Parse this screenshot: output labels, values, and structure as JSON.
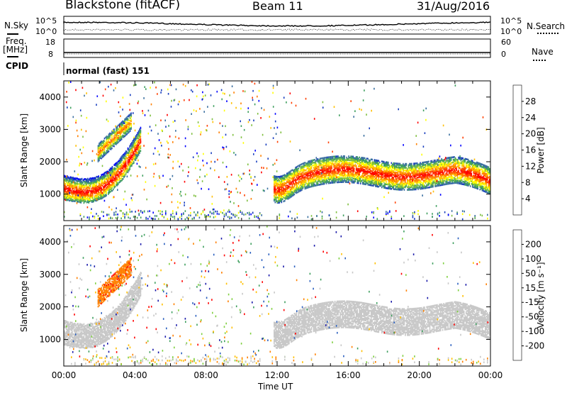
{
  "header": {
    "station": "Blackstone (fitACF)",
    "beam": "Beam 11",
    "date": "31/Aug/2016"
  },
  "top_panels": {
    "nsky_label": "N.Sky",
    "nsearch_label": "N.Search",
    "noise_ticks": [
      "10^5",
      "10^0"
    ],
    "freq_label": "Freq.",
    "freq_unit": "[MHz]",
    "freq_ticks": [
      "18",
      "8"
    ],
    "nave_label": "Nave",
    "nave_ticks": [
      "60",
      "0"
    ],
    "cpid_label": "CPID",
    "cpid_value": "normal (fast) 151"
  },
  "colors": {
    "power_scale": [
      "#0000ff",
      "#1a3fbf",
      "#3a6fa0",
      "#3f9f5f",
      "#7fbf3f",
      "#ffff00",
      "#ffbf00",
      "#ff8000",
      "#ff4000",
      "#ff0000"
    ],
    "velocity_scale": [
      "#ff0000",
      "#ff8000",
      "#ffbf00",
      "#c8c8c8",
      "#c8c8c8",
      "#7fd040",
      "#3f9f5f",
      "#2a5fbf",
      "#1a1aaa"
    ]
  },
  "chart_data": [
    {
      "type": "heatmap",
      "title": "",
      "xlabel": "Time UT",
      "ylabel": "Slant Range [km]",
      "x_ticks": [
        "00:00",
        "04:00",
        "08:00",
        "12:00",
        "16:00",
        "20:00",
        "00:00"
      ],
      "xlim": [
        0,
        24
      ],
      "ylim": [
        180,
        4500
      ],
      "y_ticks": [
        "1000",
        "2000",
        "3000",
        "4000"
      ],
      "colorbar": {
        "label": "Power [dB]",
        "range": [
          0,
          32
        ],
        "ticks": [
          "4",
          "8",
          "12",
          "16",
          "20",
          "24",
          "28"
        ]
      },
      "grid": false
    },
    {
      "type": "heatmap",
      "title": "",
      "xlabel": "Time UT",
      "ylabel": "Slant Range [km]",
      "x_ticks": [
        "00:00",
        "04:00",
        "08:00",
        "12:00",
        "16:00",
        "20:00",
        "00:00"
      ],
      "xlim": [
        0,
        24
      ],
      "ylim": [
        180,
        4500
      ],
      "y_ticks": [
        "1000",
        "2000",
        "3000",
        "4000"
      ],
      "colorbar": {
        "label": "Velocity [m s⁻¹]",
        "range": [
          -250,
          250
        ],
        "ticks": [
          "200",
          "100",
          "50",
          "15",
          "-15",
          "-50",
          "-100",
          "-200"
        ]
      },
      "grid": false
    }
  ]
}
